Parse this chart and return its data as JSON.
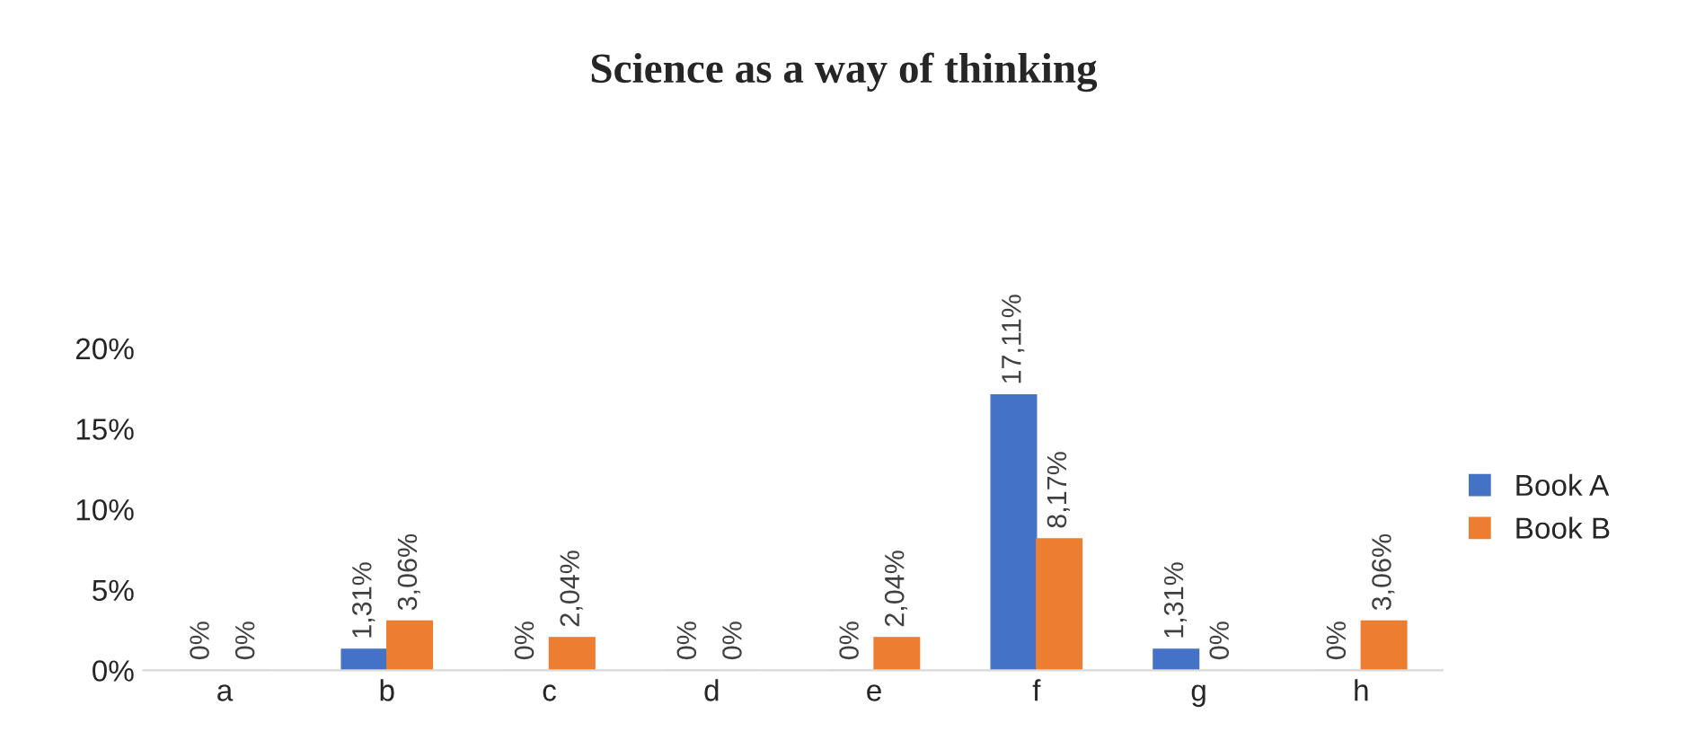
{
  "chart_data": {
    "type": "bar",
    "title": "Science as a way of thinking",
    "categories": [
      "a",
      "b",
      "c",
      "d",
      "e",
      "f",
      "g",
      "h"
    ],
    "series": [
      {
        "name": "Book A",
        "color": "#4472c4",
        "values": [
          0,
          1.31,
          0,
          0,
          0,
          17.11,
          1.31,
          0
        ],
        "value_labels": [
          "0%",
          "1,31%",
          "0%",
          "0%",
          "0%",
          "17,11%",
          "1,31%",
          "0%"
        ]
      },
      {
        "name": "Book B",
        "color": "#ed7d31",
        "values": [
          0,
          3.06,
          2.04,
          0,
          2.04,
          8.17,
          0,
          3.06
        ],
        "value_labels": [
          "0%",
          "3,06%",
          "2,04%",
          "0%",
          "2,04%",
          "8,17%",
          "0%",
          "3,06%"
        ]
      }
    ],
    "ylim": [
      0,
      20
    ],
    "yticks": [
      {
        "value": 0,
        "label": "0%"
      },
      {
        "value": 5,
        "label": "5%"
      },
      {
        "value": 10,
        "label": "10%"
      },
      {
        "value": 15,
        "label": "15%"
      },
      {
        "value": 20,
        "label": "20%"
      }
    ],
    "grid": false,
    "legend": "right"
  }
}
